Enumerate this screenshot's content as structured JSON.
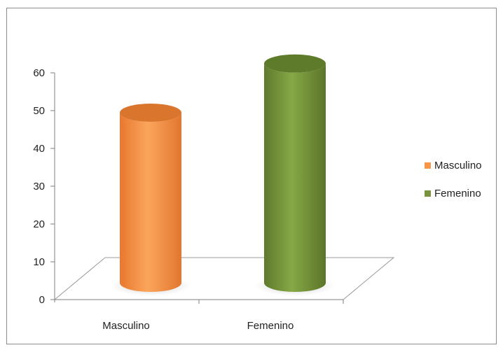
{
  "chart_data": {
    "type": "bar",
    "style": "3d-cylinder",
    "categories": [
      "Masculino",
      "Femenino"
    ],
    "series": [
      {
        "name": "Masculino",
        "values": [
          45,
          null
        ],
        "color": "#F79646"
      },
      {
        "name": "Femenino",
        "values": [
          null,
          58
        ],
        "color": "#77933C"
      }
    ],
    "ylim": [
      0,
      60
    ],
    "yticks": [
      0,
      10,
      20,
      30,
      40,
      50,
      60
    ],
    "title": "",
    "xlabel": "",
    "ylabel": "",
    "grid": false,
    "legend": {
      "position": "right",
      "entries": [
        "Masculino",
        "Femenino"
      ]
    }
  }
}
